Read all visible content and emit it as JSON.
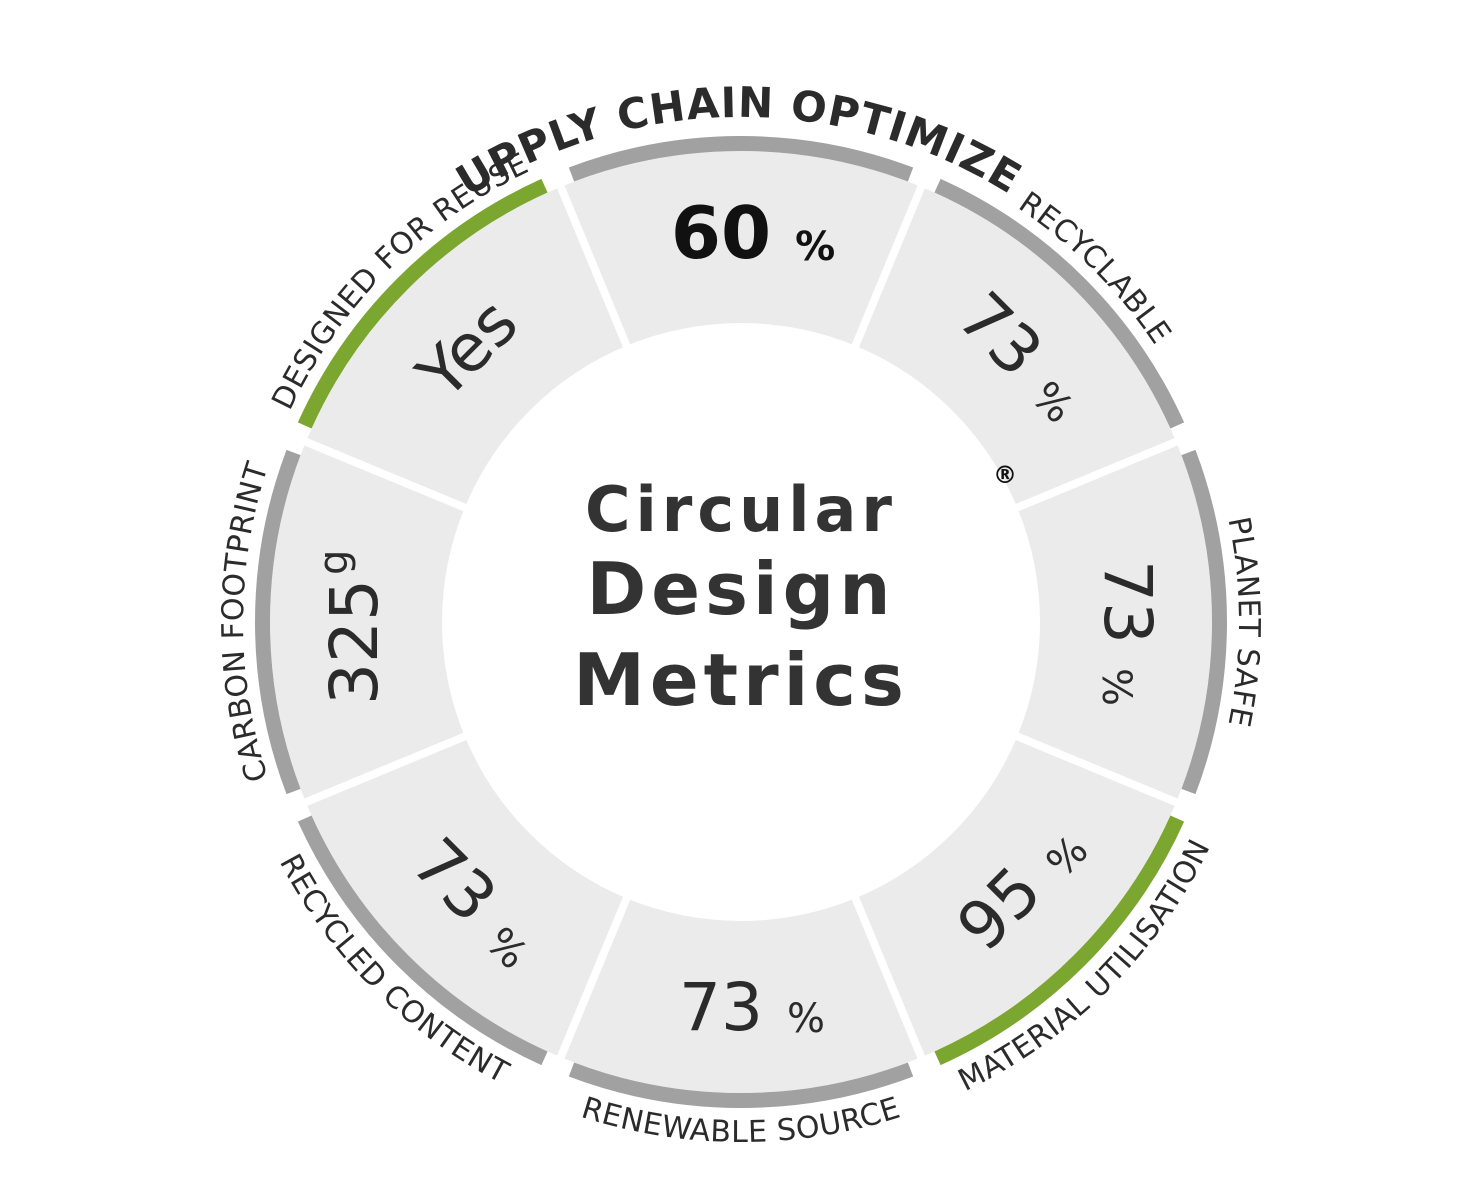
{
  "title": {
    "line1": "Circular",
    "line2": "Design",
    "line3": "Metrics",
    "registered_mark": "®"
  },
  "supply_chain_label": "SUPPLY CHAIN OPTIMIZED",
  "colors": {
    "ring_default": "#a1a1a1",
    "ring_highlight": "#7ba62f",
    "segment_fill": "#ebebeb",
    "center_fill": "#ffffff",
    "text": "#2b2b2b"
  },
  "metrics": [
    {
      "key": "supply-chain",
      "label": "",
      "value": "60",
      "unit": "%",
      "highlight": false
    },
    {
      "key": "recyclable",
      "label": "RECYCLABLE",
      "value": "73",
      "unit": "%",
      "highlight": false
    },
    {
      "key": "planet-safe",
      "label": "PLANET SAFE",
      "value": "73",
      "unit": "%",
      "highlight": false
    },
    {
      "key": "material-utilisation",
      "label": "MATERIAL UTILISATION",
      "value": "95",
      "unit": "%",
      "highlight": true
    },
    {
      "key": "renewable-source",
      "label": "RENEWABLE SOURCE",
      "value": "73",
      "unit": "%",
      "highlight": false
    },
    {
      "key": "recycled-content",
      "label": "RECYCLED CONTENT",
      "value": "73",
      "unit": "%",
      "highlight": false
    },
    {
      "key": "carbon-footprint",
      "label": "CARBON FOOTPRINT",
      "value": "325",
      "unit": "g",
      "highlight": false
    },
    {
      "key": "designed-for-reuse",
      "label": "DESIGNED FOR REUSE",
      "value": "Yes",
      "unit": "",
      "highlight": true
    }
  ]
}
